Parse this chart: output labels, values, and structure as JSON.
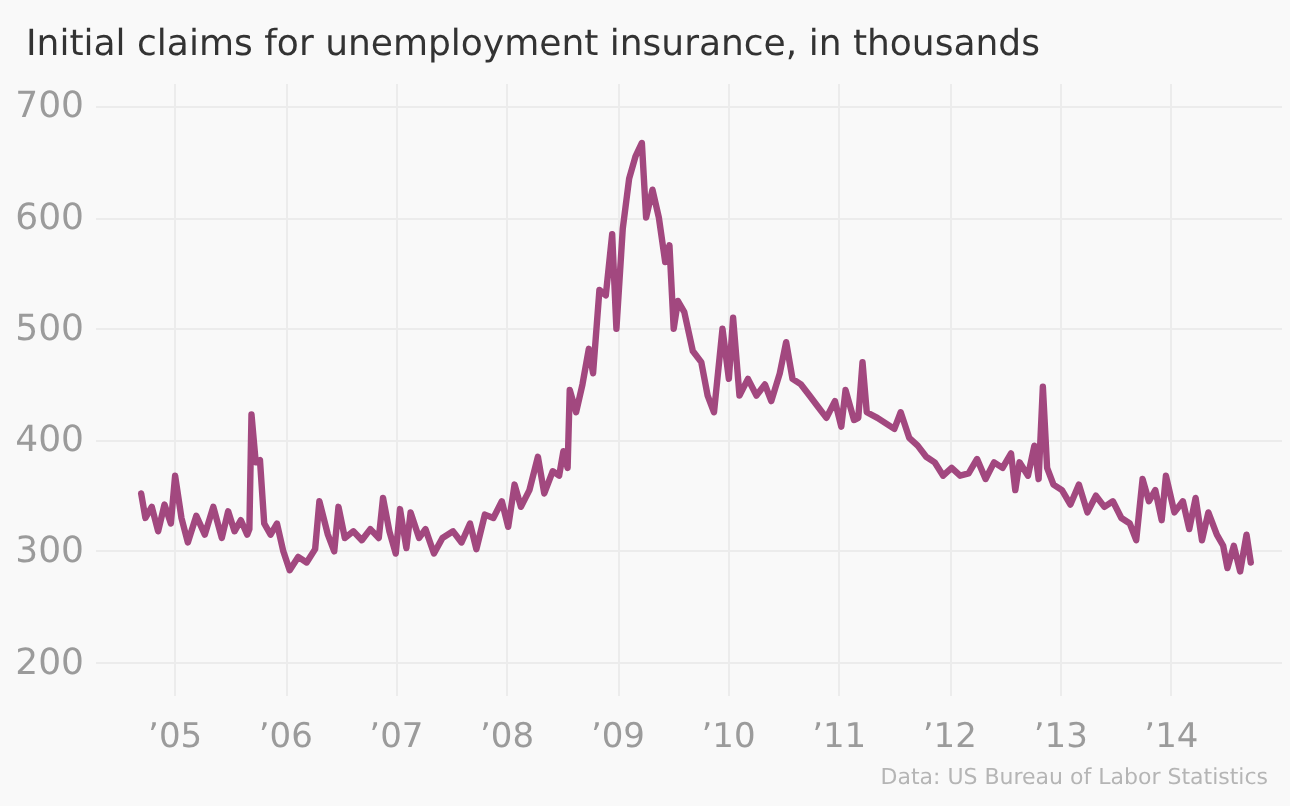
{
  "chart_data": {
    "type": "line",
    "title": "Initial claims for unemployment insurance, in thousands",
    "annotations": [
      "Data: US Bureau of Labor Statistics"
    ],
    "x": [
      "2004-09-11",
      "2004-09-25",
      "2004-10-16",
      "2004-11-06",
      "2004-11-27",
      "2004-12-18",
      "2005-01-01",
      "2005-01-22",
      "2005-02-12",
      "2005-03-12",
      "2005-04-09",
      "2005-05-07",
      "2005-06-04",
      "2005-06-25",
      "2005-07-16",
      "2005-08-06",
      "2005-08-27",
      "2005-09-03",
      "2005-09-10",
      "2005-09-24",
      "2005-10-08",
      "2005-10-22",
      "2005-11-12",
      "2005-12-03",
      "2005-12-24",
      "2006-01-14",
      "2006-02-11",
      "2006-03-11",
      "2006-04-08",
      "2006-04-22",
      "2006-05-20",
      "2006-06-10",
      "2006-06-24",
      "2006-07-15",
      "2006-08-12",
      "2006-09-09",
      "2006-10-07",
      "2006-11-04",
      "2006-11-18",
      "2006-12-09",
      "2006-12-30",
      "2007-01-13",
      "2007-02-03",
      "2007-02-17",
      "2007-03-17",
      "2007-04-07",
      "2007-05-05",
      "2007-06-02",
      "2007-07-07",
      "2007-08-04",
      "2007-09-01",
      "2007-09-22",
      "2007-10-20",
      "2007-11-17",
      "2007-12-15",
      "2008-01-05",
      "2008-01-26",
      "2008-02-16",
      "2008-03-15",
      "2008-04-12",
      "2008-05-03",
      "2008-05-31",
      "2008-06-21",
      "2008-07-05",
      "2008-07-19",
      "2008-07-26",
      "2008-08-16",
      "2008-09-06",
      "2008-09-27",
      "2008-10-11",
      "2008-11-01",
      "2008-11-22",
      "2008-12-13",
      "2008-12-27",
      "2009-01-17",
      "2009-02-07",
      "2009-02-28",
      "2009-03-21",
      "2009-04-04",
      "2009-04-25",
      "2009-05-16",
      "2009-06-06",
      "2009-06-20",
      "2009-07-04",
      "2009-07-18",
      "2009-08-08",
      "2009-09-05",
      "2009-10-03",
      "2009-10-24",
      "2009-11-14",
      "2009-12-12",
      "2010-01-02",
      "2010-01-16",
      "2010-02-06",
      "2010-03-06",
      "2010-04-03",
      "2010-05-01",
      "2010-05-22",
      "2010-06-19",
      "2010-07-10",
      "2010-07-31",
      "2010-08-28",
      "2010-09-25",
      "2010-10-23",
      "2010-11-20",
      "2010-12-18",
      "2011-01-08",
      "2011-01-22",
      "2011-02-19",
      "2011-03-05",
      "2011-03-19",
      "2011-04-02",
      "2011-05-07",
      "2011-06-04",
      "2011-07-02",
      "2011-07-23",
      "2011-08-20",
      "2011-09-17",
      "2011-10-15",
      "2011-11-12",
      "2011-12-10",
      "2012-01-07",
      "2012-02-04",
      "2012-03-03",
      "2012-03-31",
      "2012-04-28",
      "2012-05-26",
      "2012-06-23",
      "2012-07-21",
      "2012-08-04",
      "2012-08-18",
      "2012-09-15",
      "2012-10-06",
      "2012-10-20",
      "2012-11-03",
      "2012-11-17",
      "2012-12-08",
      "2013-01-05",
      "2013-02-02",
      "2013-03-02",
      "2013-03-30",
      "2013-04-27",
      "2013-05-25",
      "2013-06-22",
      "2013-07-20",
      "2013-08-17",
      "2013-09-07",
      "2013-09-28",
      "2013-10-19",
      "2013-11-09",
      "2013-11-30",
      "2013-12-14",
      "2014-01-11",
      "2014-02-08",
      "2014-03-01",
      "2014-03-22",
      "2014-04-12",
      "2014-05-03",
      "2014-05-31",
      "2014-06-21",
      "2014-07-05",
      "2014-07-26",
      "2014-08-16",
      "2014-09-06",
      "2014-09-20"
    ],
    "series": [
      {
        "color": "#a2487f",
        "values": [
          352,
          330,
          340,
          318,
          342,
          325,
          368,
          330,
          308,
          332,
          315,
          340,
          312,
          336,
          318,
          328,
          315,
          320,
          423,
          380,
          382,
          325,
          315,
          325,
          300,
          283,
          295,
          290,
          302,
          345,
          315,
          300,
          340,
          312,
          318,
          310,
          320,
          312,
          348,
          318,
          298,
          338,
          303,
          335,
          312,
          320,
          298,
          312,
          318,
          308,
          325,
          302,
          333,
          330,
          345,
          322,
          360,
          340,
          355,
          385,
          352,
          372,
          368,
          390,
          375,
          445,
          425,
          450,
          482,
          460,
          535,
          530,
          585,
          500,
          590,
          635,
          655,
          667,
          600,
          625,
          600,
          560,
          575,
          500,
          525,
          515,
          480,
          470,
          440,
          425,
          500,
          455,
          510,
          440,
          455,
          440,
          450,
          435,
          460,
          488,
          455,
          450,
          440,
          430,
          420,
          435,
          412,
          445,
          418,
          420,
          470,
          425,
          420,
          415,
          410,
          425,
          402,
          395,
          385,
          380,
          368,
          375,
          368,
          370,
          383,
          365,
          380,
          375,
          388,
          355,
          380,
          368,
          395,
          365,
          448,
          375,
          360,
          355,
          342,
          360,
          335,
          350,
          340,
          345,
          330,
          325,
          310,
          365,
          345,
          355,
          328,
          368,
          335,
          345,
          320,
          348,
          310,
          335,
          315,
          305,
          285,
          305,
          282,
          315,
          290
        ]
      }
    ],
    "xlim": [
      "2004-04-15",
      "2015-01-01"
    ],
    "xticks": [
      {
        "value": "2005-01-01",
        "label": "’05"
      },
      {
        "value": "2006-01-01",
        "label": "’06"
      },
      {
        "value": "2007-01-01",
        "label": "’07"
      },
      {
        "value": "2008-01-01",
        "label": "’08"
      },
      {
        "value": "2009-01-01",
        "label": "’09"
      },
      {
        "value": "2010-01-01",
        "label": "’10"
      },
      {
        "value": "2011-01-01",
        "label": "’11"
      },
      {
        "value": "2012-01-01",
        "label": "’12"
      },
      {
        "value": "2013-01-01",
        "label": "’13"
      },
      {
        "value": "2014-01-01",
        "label": "’14"
      }
    ],
    "ylim": [
      170,
      720
    ],
    "yticks": [
      200,
      300,
      400,
      500,
      600,
      700
    ],
    "grid": true,
    "line_style": "solid",
    "marker": "none"
  }
}
